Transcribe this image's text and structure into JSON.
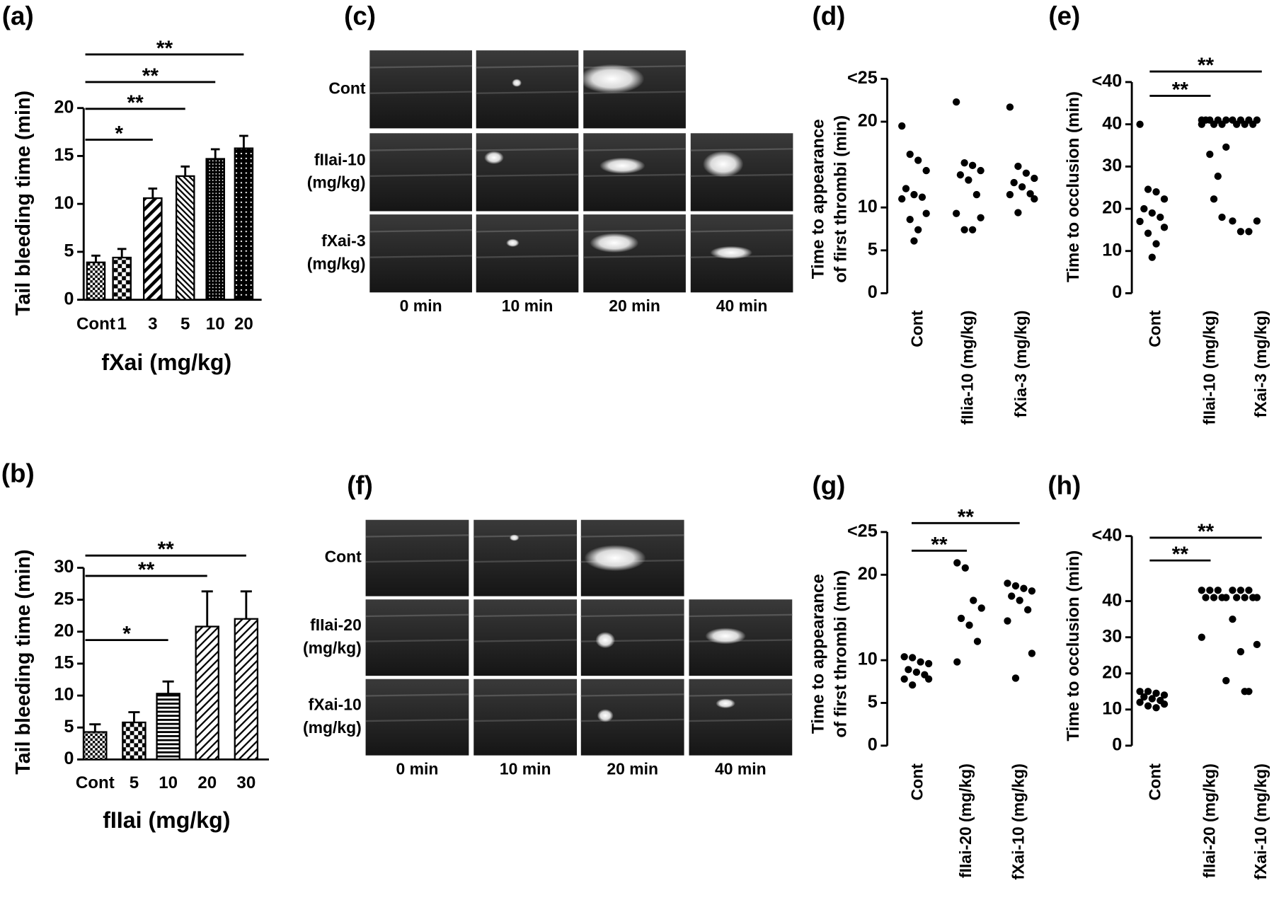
{
  "chart_data": [
    {
      "type": "bar",
      "panel": "(a)",
      "ylabel": "Tail bleeding time (min)",
      "xlabel": "fXai (mg/kg)",
      "color": "#000000",
      "categories": [
        "Cont",
        "1",
        "3",
        "5",
        "10",
        "20"
      ],
      "values": [
        3.9,
        4.4,
        10.6,
        12.9,
        14.7,
        15.8
      ],
      "errors": [
        0.7,
        0.9,
        1.0,
        1.0,
        1.0,
        1.3
      ],
      "ylim": [
        0,
        20
      ],
      "yticks": [
        0,
        5,
        10,
        15,
        20
      ],
      "significance": [
        {
          "label": "*",
          "to": 2
        },
        {
          "label": "**",
          "to": 3
        },
        {
          "label": "**",
          "to": 4
        },
        {
          "label": "**",
          "to": 5
        }
      ]
    },
    {
      "type": "bar",
      "panel": "(b)",
      "ylabel": "Tail bleeding time (min)",
      "xlabel": "fIIai (mg/kg)",
      "color": "#000000",
      "categories": [
        "Cont",
        "5",
        "10",
        "20",
        "30"
      ],
      "values": [
        4.3,
        5.8,
        10.3,
        20.8,
        22.0
      ],
      "errors": [
        1.2,
        1.6,
        1.9,
        5.5,
        4.3
      ],
      "ylim": [
        0,
        30
      ],
      "yticks": [
        0,
        5,
        10,
        15,
        20,
        25,
        30
      ],
      "significance": [
        {
          "label": "*",
          "to": 2
        },
        {
          "label": "**",
          "to": 3
        },
        {
          "label": "**",
          "to": 4
        }
      ]
    },
    {
      "type": "dot",
      "panel": "(d)",
      "ylabel": [
        "Time to appearance",
        "of first thrombi (min)"
      ],
      "y_top_label": "<25",
      "color": "#000000",
      "categories": [
        "Cont",
        "fIIia-10 (mg/kg)",
        "fXia-3 (mg/kg)"
      ],
      "values": [
        [
          19.5,
          16.2,
          15.5,
          14.3,
          12.2,
          11.5,
          11.2,
          11.0,
          9.3,
          8.6,
          7.4,
          6.1
        ],
        [
          22.3,
          15.2,
          14.9,
          14.3,
          13.8,
          13.2,
          11.5,
          9.3,
          8.8,
          7.4,
          7.4
        ],
        [
          21.7,
          14.8,
          14.0,
          13.4,
          12.9,
          12.4,
          11.6,
          11.5,
          11.0,
          9.4
        ]
      ],
      "ylim": [
        0,
        25
      ],
      "yticks": [
        0,
        5,
        10,
        20
      ],
      "significance": []
    },
    {
      "type": "dot",
      "panel": "(e)",
      "ylabel": "Time to occlusion (min)",
      "y_top_label": "<40",
      "color": "#000000",
      "categories": [
        "Cont",
        "fIIai-10 (mg/kg)",
        "fXai-3 (mg/kg)"
      ],
      "values": [
        [
          40,
          24.6,
          24,
          22.3,
          20,
          19,
          18,
          17,
          15.6,
          14.2,
          11.7,
          8.5
        ],
        [
          41,
          41,
          41,
          41,
          41,
          40,
          40,
          40,
          34.6,
          32.9,
          27.7,
          22.3,
          18
        ],
        [
          41,
          41,
          41,
          41,
          40,
          40,
          40,
          17.1,
          17.1,
          14.6,
          14.6
        ]
      ],
      "ylim": [
        0,
        50
      ],
      "yticks": [
        0,
        10,
        20,
        30,
        40
      ],
      "significance": [
        {
          "label": "**",
          "to": 1
        },
        {
          "label": "**",
          "to": 2
        }
      ]
    },
    {
      "type": "dot",
      "panel": "(g)",
      "ylabel": [
        "Time to appearance",
        "of first thrombi (min)"
      ],
      "y_top_label": "<25",
      "color": "#000000",
      "categories": [
        "Cont",
        "fIIai-20 (mg/kg)",
        "fXai-10 (mg/kg)"
      ],
      "values": [
        [
          10.4,
          10.3,
          9.8,
          9.6,
          8.9,
          8.6,
          8.3,
          7.8,
          7.8,
          7.1
        ],
        [
          21.4,
          20.8,
          17.0,
          16.1,
          14.9,
          14.1,
          12.2,
          9.8
        ],
        [
          19.0,
          18.7,
          18.4,
          18.1,
          17.5,
          17.0,
          15.9,
          14.6,
          10.8,
          7.9
        ]
      ],
      "ylim": [
        0,
        25
      ],
      "yticks": [
        0,
        5,
        10,
        20
      ],
      "significance": [
        {
          "label": "**",
          "to": 1
        },
        {
          "label": "**",
          "to": 2
        }
      ]
    },
    {
      "type": "dot",
      "panel": "(h)",
      "ylabel": "Time to occlusion (min)",
      "y_top_label": "<40",
      "color": "#000000",
      "categories": [
        "Cont",
        "fIIai-20 (mg/kg)",
        "fXai-10 (mg/kg)"
      ],
      "values": [
        [
          15,
          15,
          14.5,
          14,
          13.5,
          13,
          12.5,
          12,
          11.5,
          11,
          10.5
        ],
        [
          43,
          43,
          43,
          41,
          41,
          41,
          41,
          30,
          18
        ],
        [
          43,
          43,
          43,
          41,
          41,
          41,
          41,
          35,
          28,
          26,
          15,
          15
        ]
      ],
      "ylim": [
        0,
        58
      ],
      "yticks": [
        0,
        10,
        20,
        30,
        40
      ],
      "significance": [
        {
          "label": "**",
          "to": 1
        },
        {
          "label": "**",
          "to": 2
        }
      ]
    }
  ],
  "image_panels": [
    {
      "panel": "(c)",
      "rows": [
        [
          "Cont"
        ],
        [
          "fIIai-10",
          "(mg/kg)"
        ],
        [
          "fXai-3",
          "(mg/kg)"
        ]
      ],
      "columns": [
        "0 min",
        "10 min",
        "20 min",
        "40 min"
      ]
    },
    {
      "panel": "(f)",
      "rows": [
        [
          "Cont"
        ],
        [
          "fIIai-20",
          "(mg/kg)"
        ],
        [
          "fXai-10",
          "(mg/kg)"
        ]
      ],
      "columns": [
        "0 min",
        "10 min",
        "20 min",
        "40 min"
      ]
    }
  ]
}
